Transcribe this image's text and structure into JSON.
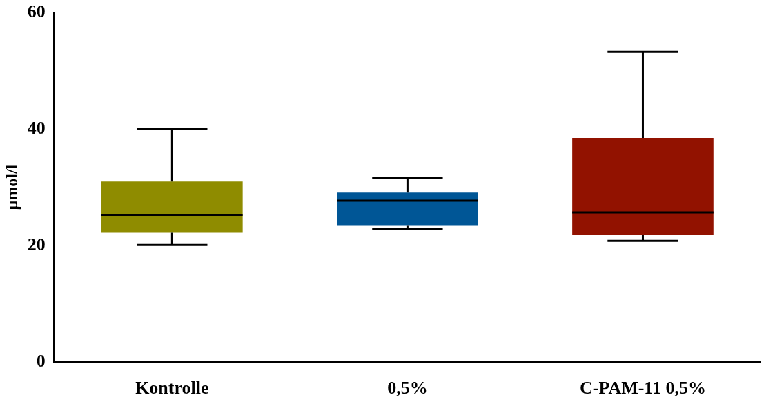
{
  "chart_data": {
    "type": "box",
    "ylabel": "µmol/l",
    "categories": [
      "Kontrolle",
      "0,5%",
      "C-PAM-11 0,5%"
    ],
    "boxes": [
      {
        "low": 20.1,
        "q1": 22.2,
        "median": 25.2,
        "q3": 31.0,
        "high": 40.1
      },
      {
        "low": 22.8,
        "q1": 23.4,
        "median": 27.7,
        "q3": 29.1,
        "high": 31.6
      },
      {
        "low": 20.8,
        "q1": 21.8,
        "median": 25.7,
        "q3": 38.5,
        "high": 53.3
      }
    ],
    "colors": [
      "#8f8c00",
      "#005696",
      "#921200"
    ],
    "ylim": [
      0,
      60
    ],
    "yticks": [
      0,
      20,
      40,
      60
    ]
  }
}
